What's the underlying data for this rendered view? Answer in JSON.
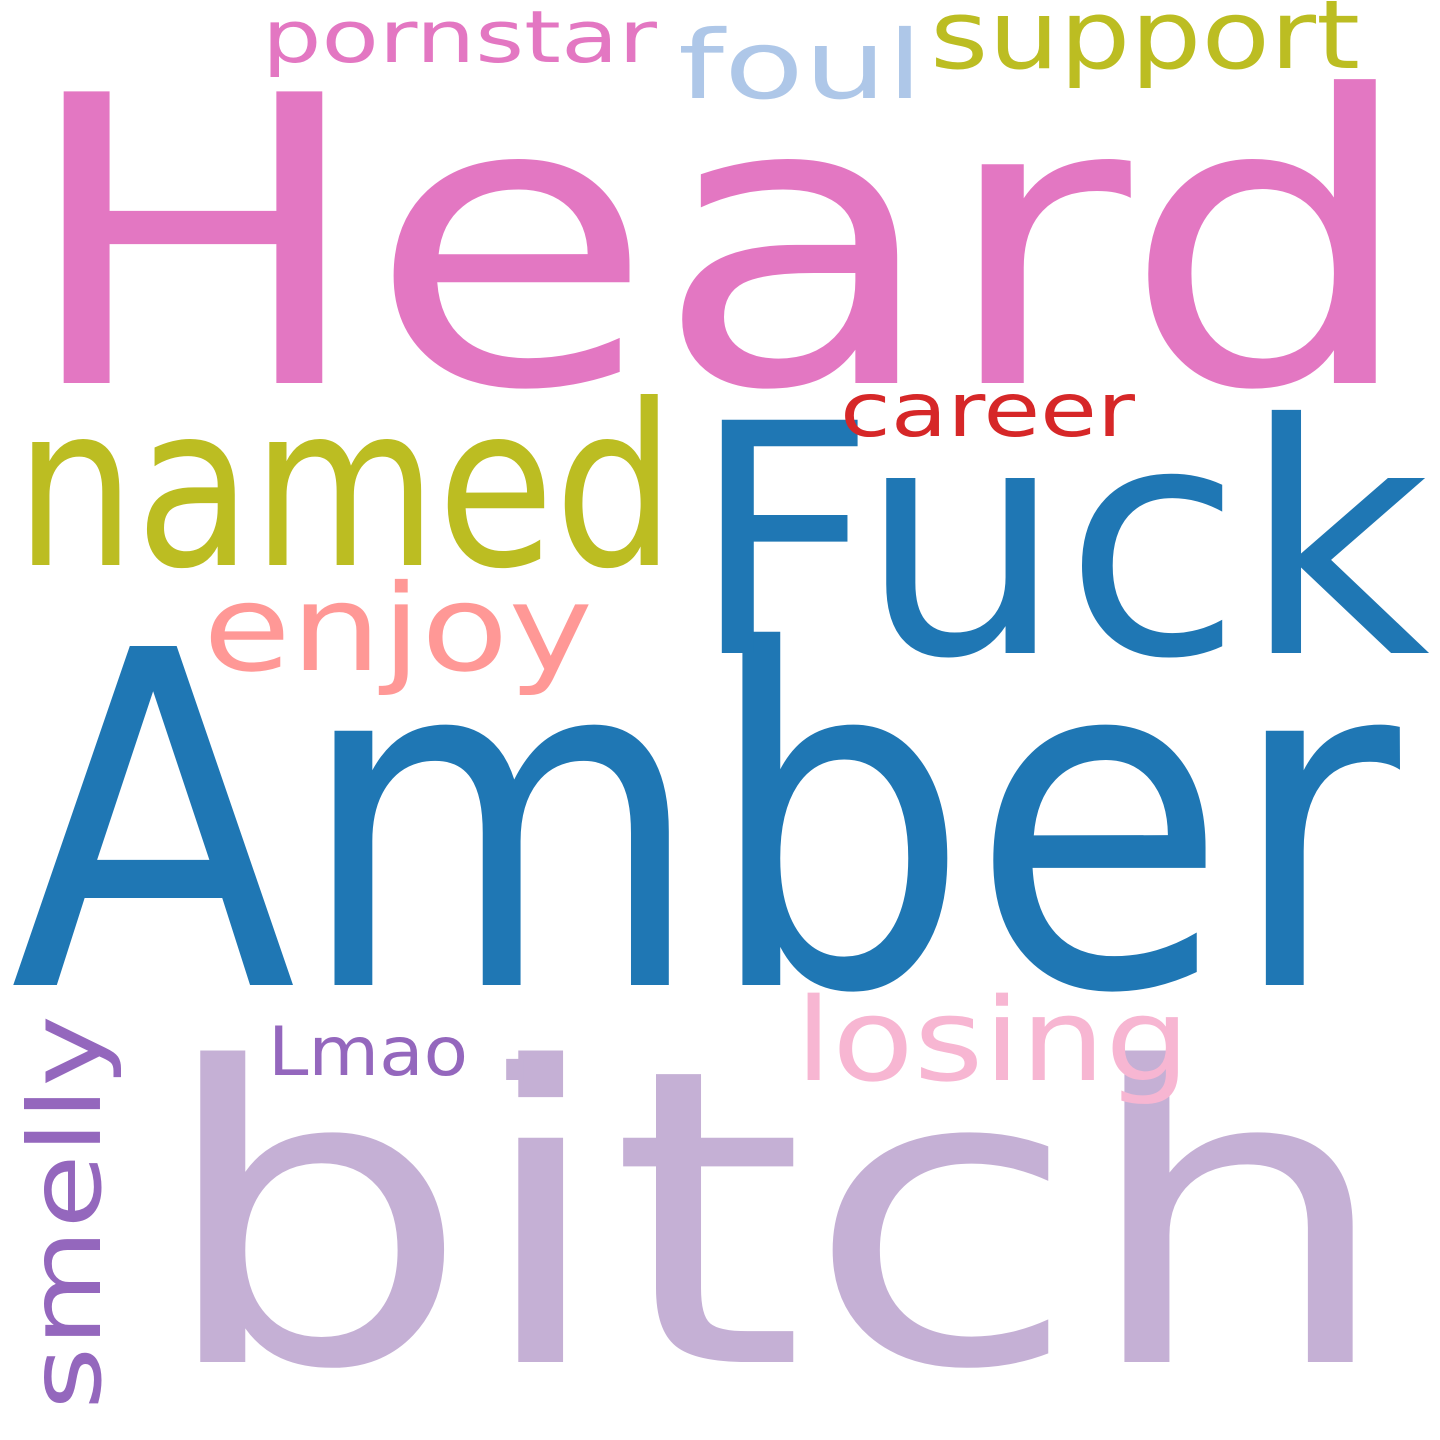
{
  "words": [
    {
      "text": "Heard",
      "color": "#e377c2"
    },
    {
      "text": "Amber",
      "color": "#1f77b4"
    },
    {
      "text": "bitch",
      "color": "#c5b0d5"
    },
    {
      "text": "Fuck",
      "color": "#1f77b4"
    },
    {
      "text": "named",
      "color": "#bcbd22"
    },
    {
      "text": "enjoy",
      "color": "#ff9896"
    },
    {
      "text": "losing",
      "color": "#f7b6d2"
    },
    {
      "text": "smelly",
      "color": "#9467bd"
    },
    {
      "text": "career",
      "color": "#d62728"
    },
    {
      "text": "support",
      "color": "#bcbd22"
    },
    {
      "text": "foul",
      "color": "#aec7e8"
    },
    {
      "text": "pornstar",
      "color": "#e377c2"
    },
    {
      "text": "Lmao",
      "color": "#9467bd"
    },
    {
      "text": ".",
      "color": "#c5b0d5"
    }
  ]
}
